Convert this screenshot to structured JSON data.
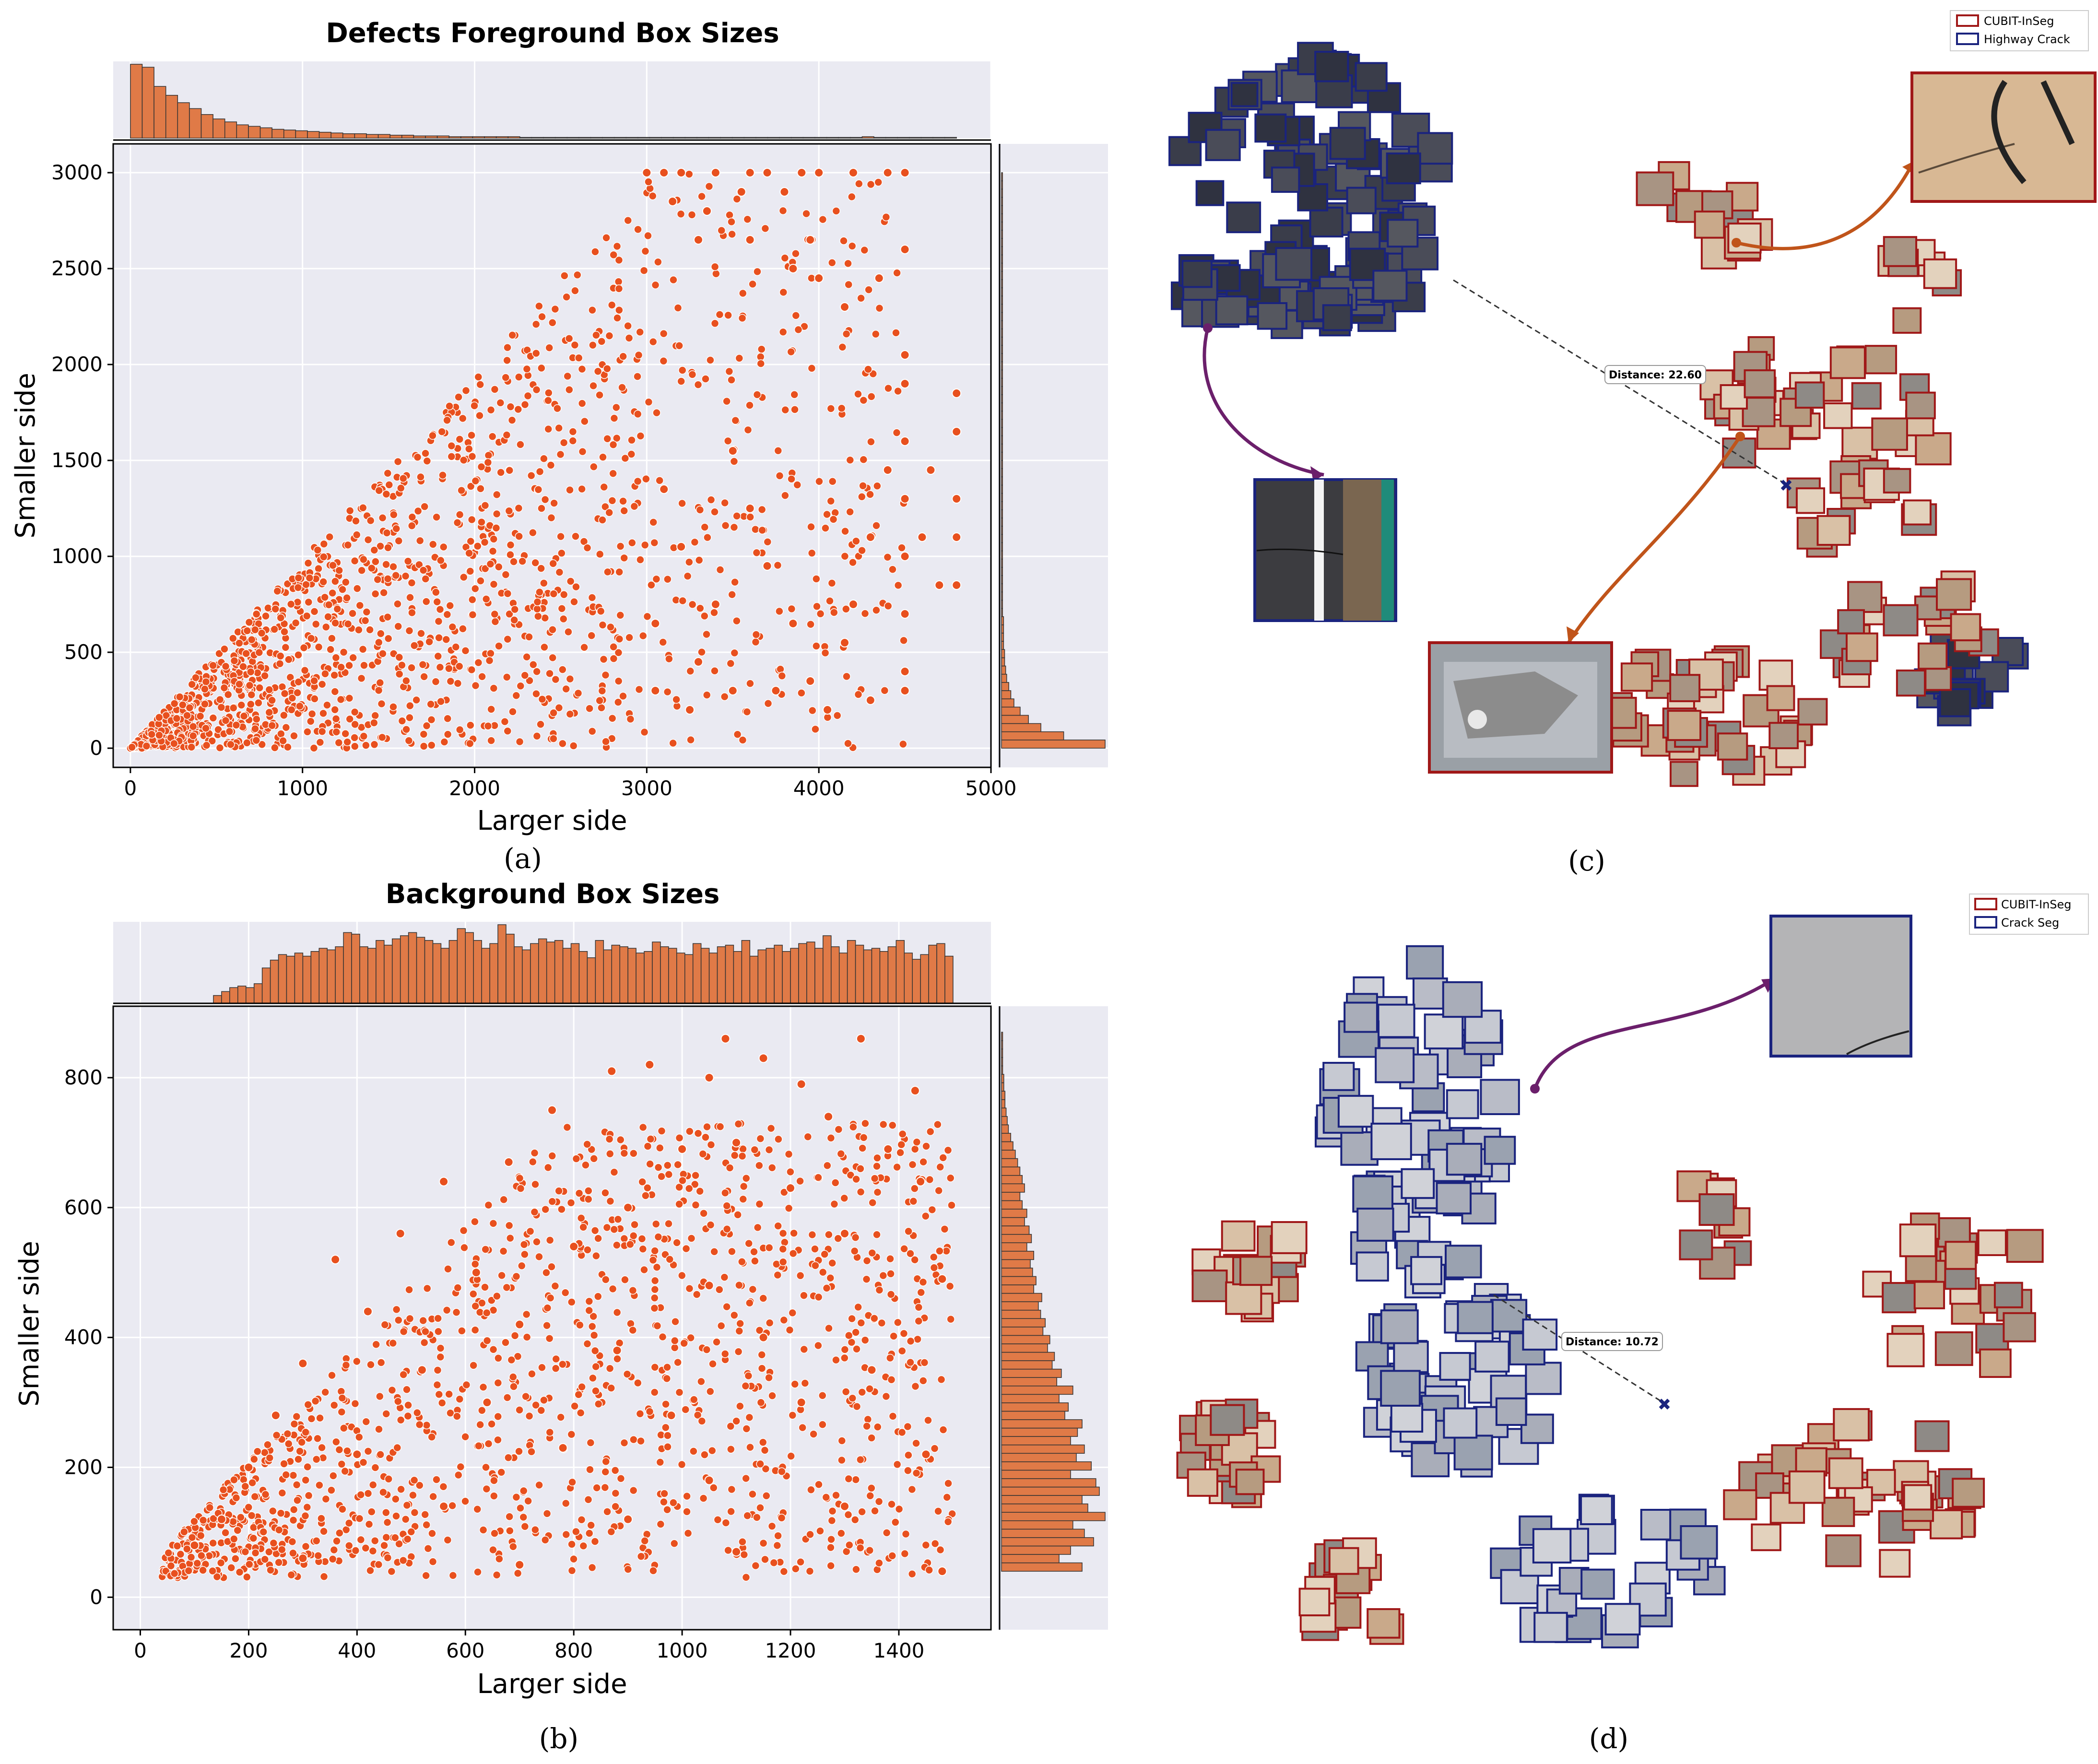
{
  "colors": {
    "panel_bg": "#eaeaf2",
    "grid": "#ffffff",
    "point": "#e8501e",
    "hist": "#e07a47",
    "cubit": "#a01818",
    "other": "#1a237e",
    "purple": "#6b1f6b",
    "orange": "#c0541a"
  },
  "chart_data": [
    {
      "type": "scatter",
      "panel": "(a)",
      "title": "Defects Foreground Box Sizes",
      "xlabel": "Larger side",
      "ylabel": "Smaller side",
      "xlim": [
        -100,
        5000
      ],
      "ylim": [
        -100,
        3150
      ],
      "xticks": [
        0,
        1000,
        2000,
        3000,
        4000,
        5000
      ],
      "yticks": [
        0,
        500,
        1000,
        1500,
        2000,
        2500,
        3000
      ],
      "grid": true,
      "marginal_x_hist": true,
      "marginal_y_hist": true,
      "points": [
        [
          3000,
          3000
        ],
        [
          3100,
          3000
        ],
        [
          3200,
          3000
        ],
        [
          3400,
          3000
        ],
        [
          3600,
          3000
        ],
        [
          3700,
          3000
        ],
        [
          3900,
          3000
        ],
        [
          4000,
          3000
        ],
        [
          4200,
          3000
        ],
        [
          4400,
          3000
        ],
        [
          4500,
          3000
        ],
        [
          3150,
          2850
        ],
        [
          3350,
          2800
        ],
        [
          3550,
          2900
        ],
        [
          3800,
          2900
        ],
        [
          3300,
          2650
        ],
        [
          3600,
          2650
        ],
        [
          3950,
          2650
        ],
        [
          3850,
          2500
        ],
        [
          4000,
          2450
        ],
        [
          4150,
          2300
        ],
        [
          4350,
          2450
        ],
        [
          4500,
          2600
        ],
        [
          4500,
          2050
        ],
        [
          4500,
          1900
        ],
        [
          4500,
          1600
        ],
        [
          4500,
          1300
        ],
        [
          4500,
          1000
        ],
        [
          4500,
          700
        ],
        [
          4500,
          400
        ],
        [
          4800,
          1850
        ],
        [
          4800,
          1650
        ],
        [
          4800,
          1300
        ],
        [
          4800,
          1100
        ],
        [
          4800,
          850
        ],
        [
          4700,
          850
        ],
        [
          4650,
          1450
        ],
        [
          4600,
          1100
        ],
        [
          4400,
          1450
        ],
        [
          4300,
          1100
        ],
        [
          4200,
          750
        ],
        [
          4150,
          550
        ],
        [
          3950,
          350
        ],
        [
          3850,
          650
        ],
        [
          3700,
          950
        ],
        [
          3600,
          1250
        ],
        [
          3500,
          1550
        ],
        [
          3400,
          750
        ],
        [
          3300,
          450
        ],
        [
          3200,
          1050
        ],
        [
          3100,
          1350
        ],
        [
          3050,
          650
        ],
        [
          3050,
          300
        ],
        [
          3250,
          200
        ],
        [
          3500,
          300
        ],
        [
          3750,
          300
        ],
        [
          4050,
          200
        ],
        [
          4300,
          250
        ],
        [
          4500,
          300
        ]
      ],
      "marginal_x": [
        100,
        96,
        70,
        58,
        48,
        40,
        32,
        26,
        22,
        18,
        16,
        14,
        12,
        11,
        10,
        9,
        8,
        7,
        6,
        6,
        5,
        5,
        4,
        4,
        3,
        3,
        3,
        2,
        2,
        2,
        2,
        2,
        2,
        1,
        1,
        1,
        1,
        1,
        1,
        1,
        1,
        1,
        1,
        1,
        1,
        1,
        1,
        1,
        1,
        1,
        1,
        1,
        1,
        1,
        1,
        1,
        1,
        1,
        1,
        1,
        1,
        1,
        2,
        1,
        1,
        1,
        1,
        1,
        1,
        1
      ],
      "marginal_y": [
        100,
        60,
        38,
        26,
        18,
        12,
        9,
        7,
        5,
        4,
        3,
        3,
        2,
        2,
        2,
        2,
        1,
        1,
        1,
        1,
        1,
        1,
        1,
        1,
        1,
        1,
        1,
        1,
        1,
        1,
        1,
        1,
        1,
        1,
        1,
        1,
        1,
        1,
        1,
        1,
        1,
        1,
        1,
        1,
        1,
        1,
        1,
        1,
        1,
        1,
        1,
        1,
        1,
        1,
        1,
        1,
        1,
        1,
        1,
        1,
        1,
        1,
        1,
        1,
        1,
        1,
        1,
        1,
        1,
        1
      ]
    },
    {
      "type": "scatter",
      "panel": "(b)",
      "title": "Background Box Sizes",
      "xlabel": "Larger side",
      "ylabel": "Smaller side",
      "xlim": [
        -50,
        1570
      ],
      "ylim": [
        -50,
        910
      ],
      "xticks": [
        0,
        200,
        400,
        600,
        800,
        1000,
        1200,
        1400
      ],
      "yticks": [
        0,
        200,
        400,
        600,
        800
      ],
      "grid": true,
      "marginal_x_hist": true,
      "marginal_y_hist": true,
      "points": [
        [
          1080,
          860
        ],
        [
          1330,
          860
        ],
        [
          940,
          820
        ],
        [
          1150,
          830
        ],
        [
          870,
          810
        ],
        [
          1220,
          790
        ],
        [
          1430,
          780
        ],
        [
          1050,
          800
        ],
        [
          760,
          750
        ],
        [
          1270,
          740
        ],
        [
          1100,
          700
        ],
        [
          1000,
          690
        ],
        [
          1380,
          690
        ],
        [
          680,
          670
        ],
        [
          560,
          640
        ],
        [
          1200,
          630
        ],
        [
          1440,
          640
        ],
        [
          480,
          560
        ],
        [
          900,
          600
        ],
        [
          360,
          520
        ],
        [
          1300,
          560
        ],
        [
          620,
          500
        ],
        [
          800,
          540
        ],
        [
          420,
          440
        ],
        [
          1050,
          480
        ],
        [
          1480,
          490
        ],
        [
          700,
          420
        ],
        [
          300,
          360
        ],
        [
          1150,
          400
        ],
        [
          880,
          380
        ],
        [
          520,
          350
        ],
        [
          1350,
          350
        ],
        [
          250,
          280
        ],
        [
          640,
          300
        ],
        [
          980,
          280
        ],
        [
          1220,
          300
        ],
        [
          200,
          200
        ],
        [
          780,
          230
        ],
        [
          1450,
          220
        ],
        [
          400,
          220
        ],
        [
          1050,
          180
        ],
        [
          150,
          120
        ],
        [
          560,
          140
        ],
        [
          900,
          120
        ],
        [
          1300,
          140
        ],
        [
          100,
          80
        ],
        [
          300,
          60
        ],
        [
          700,
          50
        ],
        [
          1100,
          70
        ],
        [
          1480,
          40
        ]
      ],
      "marginal_x": [
        0,
        0,
        0,
        0,
        0,
        0,
        0,
        0,
        0,
        10,
        15,
        20,
        22,
        20,
        25,
        45,
        55,
        62,
        60,
        64,
        60,
        66,
        70,
        68,
        72,
        90,
        88,
        72,
        70,
        80,
        74,
        82,
        86,
        90,
        84,
        80,
        76,
        70,
        80,
        95,
        90,
        80,
        70,
        76,
        100,
        88,
        72,
        68,
        76,
        82,
        78,
        80,
        70,
        76,
        66,
        58,
        80,
        68,
        74,
        72,
        70,
        64,
        66,
        78,
        72,
        70,
        64,
        62,
        76,
        70,
        64,
        72,
        74,
        66,
        80,
        60,
        68,
        70,
        74,
        66,
        70,
        76,
        78,
        70,
        86,
        72,
        64,
        80,
        74,
        68,
        70,
        66,
        72,
        80,
        64,
        56,
        62,
        74,
        76,
        60
      ],
      "marginal_y": [
        70,
        50,
        60,
        80,
        72,
        62,
        90,
        75,
        70,
        85,
        82,
        60,
        78,
        65,
        72,
        60,
        66,
        70,
        55,
        58,
        50,
        62,
        48,
        52,
        44,
        46,
        40,
        42,
        36,
        38,
        34,
        32,
        35,
        28,
        30,
        27,
        25,
        28,
        22,
        26,
        24,
        20,
        22,
        18,
        16,
        20,
        18,
        16,
        14,
        12,
        10,
        8,
        6,
        5,
        4,
        3,
        3,
        2,
        2,
        1,
        1,
        1,
        1,
        1
      ]
    }
  ],
  "captions": {
    "a": "(a)",
    "b": "(b)",
    "c": "(c)",
    "d": "(d)"
  },
  "panel_c": {
    "legend": [
      "CUBIT-InSeg",
      "Highway Crack"
    ],
    "distance_label": "Distance: 22.60"
  },
  "panel_d": {
    "legend": [
      "CUBIT-InSeg",
      "Crack Seg"
    ],
    "distance_label": "Distance: 10.72"
  }
}
